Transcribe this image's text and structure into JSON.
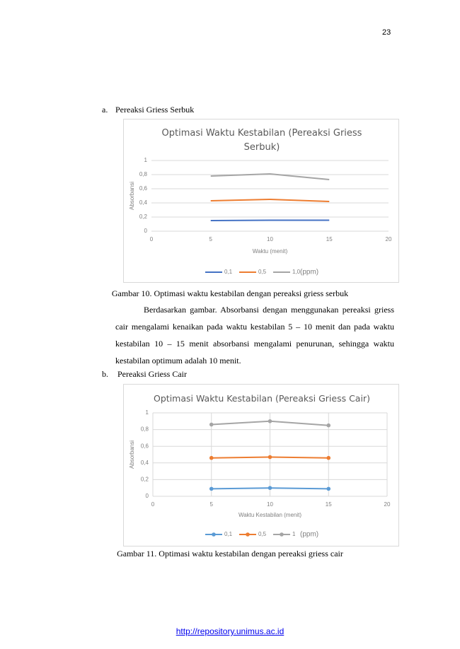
{
  "page_number": "23",
  "section_a": {
    "marker": "a.",
    "title": "Pereaksi Griess Serbuk"
  },
  "charts": [
    {
      "type": "line",
      "title": "Optimasi Waktu Kestabilan (Pereaksi Griess Serbuk)",
      "x_label": "Waktu (menit)",
      "y_label": "Absorbansi",
      "x": [
        5,
        10,
        15
      ],
      "xlim": [
        0,
        20
      ],
      "xticks": [
        0,
        5,
        10,
        15,
        20
      ],
      "ylim": [
        0,
        1
      ],
      "yticks": [
        0,
        {
          "value": 0.2,
          "label": "0,2"
        },
        {
          "value": 0.4,
          "label": "0,4"
        },
        {
          "value": 0.6,
          "label": "0,6"
        },
        {
          "value": 0.8,
          "label": "0,8"
        },
        1
      ],
      "grid": true,
      "xgrid": false,
      "markers": false,
      "legend_unit": "(ppm)",
      "series": [
        {
          "name": "0,1",
          "color": "#4472c4",
          "values": [
            0.15,
            0.155,
            0.155
          ]
        },
        {
          "name": "0,5",
          "color": "#ed7d31",
          "values": [
            0.43,
            0.45,
            0.42
          ]
        },
        {
          "name": "1,0",
          "color": "#a5a5a5",
          "values": [
            0.78,
            0.81,
            0.73
          ]
        }
      ]
    },
    {
      "type": "line",
      "title": "Optimasi Waktu Kestabilan (Pereaksi Griess Cair)",
      "x_label": "Waktu Kestabilan (menit)",
      "y_label": "Absorbansi",
      "x": [
        5,
        10,
        15
      ],
      "xlim": [
        0,
        20
      ],
      "xticks": [
        0,
        5,
        10,
        15,
        20
      ],
      "ylim": [
        0,
        1
      ],
      "yticks": [
        0,
        {
          "value": 0.2,
          "label": "0,2"
        },
        {
          "value": 0.4,
          "label": "0,4"
        },
        {
          "value": 0.6,
          "label": "0,6"
        },
        {
          "value": 0.8,
          "label": "0,8"
        },
        1
      ],
      "grid": true,
      "xgrid": true,
      "markers": true,
      "legend_unit": "(ppm)",
      "series": [
        {
          "name": "0,1",
          "color": "#5b9bd5",
          "values": [
            0.09,
            0.1,
            0.09
          ]
        },
        {
          "name": "0,5",
          "color": "#ed7d31",
          "values": [
            0.46,
            0.47,
            0.46
          ]
        },
        {
          "name": "1",
          "color": "#a5a5a5",
          "values": [
            0.86,
            0.9,
            0.85
          ]
        }
      ]
    }
  ],
  "caption_10": "Gambar 10. Optimasi waktu kestabilan dengan pereaksi griess serbuk",
  "paragraph": "Berdasarkan gambar. Absorbansi dengan menggunakan pereaksi griess cair mengalami kenaikan pada waktu kestabilan 5 – 10 menit dan pada waktu kestabilan 10 – 15 menit absorbansi mengalami penurunan, sehingga waktu kestabilan optimum adalah 10 menit.",
  "section_b": {
    "marker": "b.",
    "title": "Pereaksi Griess Cair"
  },
  "caption_11": "Gambar 11. Optimasi waktu kestabilan dengan pereaksi griess cair",
  "footer_link": "http://repository.unimus.ac.id"
}
